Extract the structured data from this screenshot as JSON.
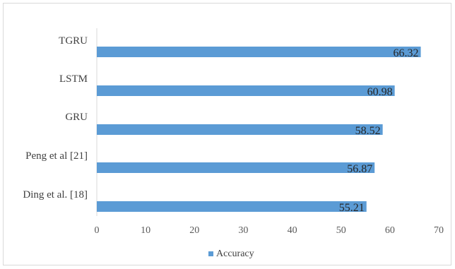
{
  "chart_data": {
    "type": "bar",
    "orientation": "horizontal",
    "title": "",
    "categories": [
      "TGRU",
      "LSTM",
      "GRU",
      "Peng et al [21]",
      "Ding et al. [18]"
    ],
    "series": [
      {
        "name": "Accuracy",
        "values": [
          66.32,
          60.98,
          58.52,
          56.87,
          55.21
        ]
      }
    ],
    "xlim": [
      0,
      70
    ],
    "xticks": [
      0,
      10,
      20,
      30,
      40,
      50,
      60,
      70
    ],
    "xlabel": "",
    "ylabel": "",
    "data_labels": true,
    "grid": false,
    "legend_position": "bottom",
    "bar_color": "#5b9bd5"
  }
}
